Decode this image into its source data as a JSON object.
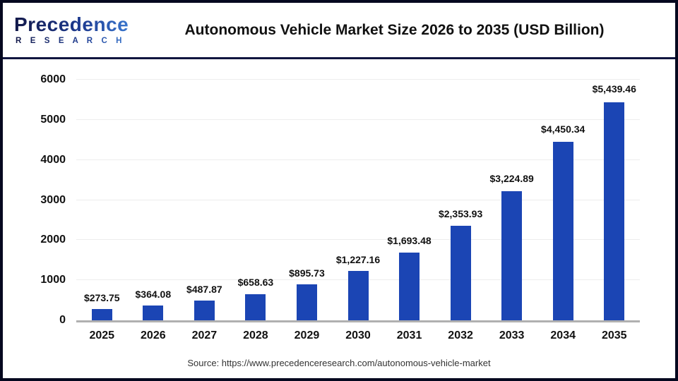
{
  "header": {
    "logo": {
      "brand": "Precedence",
      "sub": "R E S E A R C H"
    },
    "title": "Autonomous Vehicle Market Size 2026 to 2035 (USD Billion)"
  },
  "chart_data": {
    "type": "bar",
    "title": "Autonomous Vehicle Market Size 2026 to 2035 (USD Billion)",
    "categories": [
      "2025",
      "2026",
      "2027",
      "2028",
      "2029",
      "2030",
      "2031",
      "2032",
      "2033",
      "2034",
      "2035"
    ],
    "values": [
      273.75,
      364.08,
      487.87,
      658.63,
      895.73,
      1227.16,
      1693.48,
      2353.93,
      3224.89,
      4450.34,
      5439.46
    ],
    "bar_labels": [
      "$273.75",
      "$364.08",
      "$487.87",
      "$658.63",
      "$895.73",
      "$1,227.16",
      "$1,693.48",
      "$2,353.93",
      "$3,224.89",
      "$4,450.34",
      "$5,439.46"
    ],
    "xlabel": "",
    "ylabel": "",
    "ylim": [
      0,
      6000
    ],
    "yticks": [
      0,
      1000,
      2000,
      3000,
      4000,
      5000,
      6000
    ],
    "grid": true,
    "legend_position": "none",
    "bar_color": "#1B45B4",
    "gridline_color": "#EDEDED",
    "baseline_color": "#B0B0B0"
  },
  "footer": {
    "source": "Source: https://www.precedenceresearch.com/autonomous-vehicle-market"
  }
}
